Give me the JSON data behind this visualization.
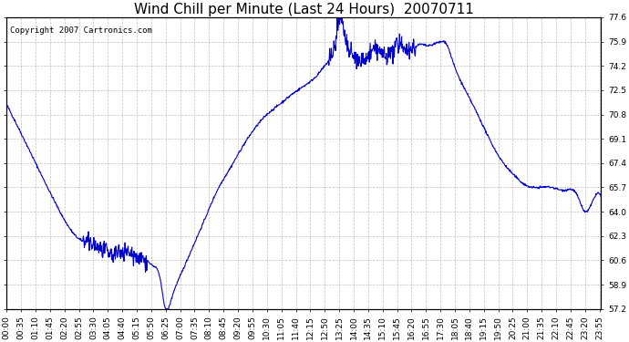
{
  "title": "Wind Chill per Minute (Last 24 Hours)  20070711",
  "copyright_text": "Copyright 2007 Cartronics.com",
  "line_color": "#0000CC",
  "background_color": "#ffffff",
  "plot_background": "#ffffff",
  "grid_color": "#b0b0b0",
  "yticks": [
    57.2,
    58.9,
    60.6,
    62.3,
    64.0,
    65.7,
    67.4,
    69.1,
    70.8,
    72.5,
    74.2,
    75.9,
    77.6
  ],
  "ymin": 57.2,
  "ymax": 77.6,
  "title_fontsize": 11,
  "tick_fontsize": 6.5,
  "copyright_fontsize": 6.5,
  "line_width": 0.8,
  "xtick_interval": 35
}
